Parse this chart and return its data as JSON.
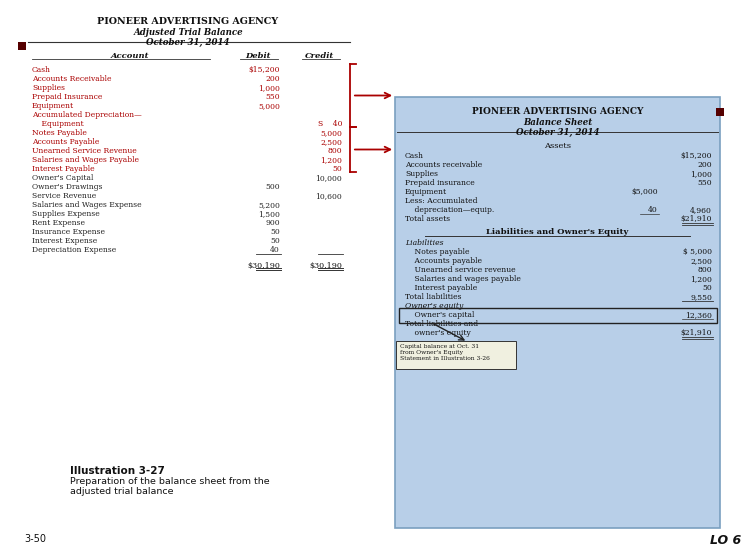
{
  "bg_color": "#ffffff",
  "left_panel": {
    "title1": "PIONEER ADVERTISING AGENCY",
    "title2": "Adjusted Trial Balance",
    "title3": "October 31, 2014",
    "col_headers": [
      "Account",
      "Debit",
      "Credit"
    ],
    "accounts": [
      {
        "name": "Cash",
        "debit": "$15,200",
        "credit": "",
        "color": "#aa0000"
      },
      {
        "name": "Accounts Receivable",
        "debit": "200",
        "credit": "",
        "color": "#aa0000"
      },
      {
        "name": "Supplies",
        "debit": "1,000",
        "credit": "",
        "color": "#aa0000"
      },
      {
        "name": "Prepaid Insurance",
        "debit": "550",
        "credit": "",
        "color": "#aa0000"
      },
      {
        "name": "Equipment",
        "debit": "5,000",
        "credit": "",
        "color": "#aa0000"
      },
      {
        "name": "Accumulated Depreciation—",
        "debit": "",
        "credit": "",
        "color": "#aa0000"
      },
      {
        "name": "    Equipment",
        "debit": "",
        "credit": "S    40",
        "color": "#aa0000"
      },
      {
        "name": "Notes Payable",
        "debit": "",
        "credit": "5,000",
        "color": "#aa0000"
      },
      {
        "name": "Accounts Payable",
        "debit": "",
        "credit": "2,500",
        "color": "#aa0000"
      },
      {
        "name": "Unearned Service Revenue",
        "debit": "",
        "credit": "800",
        "color": "#aa0000"
      },
      {
        "name": "Salaries and Wages Payable",
        "debit": "",
        "credit": "1,200",
        "color": "#aa0000"
      },
      {
        "name": "Interest Payable",
        "debit": "",
        "credit": "50",
        "color": "#aa0000"
      },
      {
        "name": "Owner's Capital",
        "debit": "",
        "credit": "10,000",
        "color": "#222222"
      },
      {
        "name": "Owner's Drawings",
        "debit": "500",
        "credit": "",
        "color": "#222222"
      },
      {
        "name": "Service Revenue",
        "debit": "",
        "credit": "10,600",
        "color": "#222222"
      },
      {
        "name": "Salaries and Wages Expense",
        "debit": "5,200",
        "credit": "",
        "color": "#222222"
      },
      {
        "name": "Supplies Expense",
        "debit": "1,500",
        "credit": "",
        "color": "#222222"
      },
      {
        "name": "Rent Expense",
        "debit": "900",
        "credit": "",
        "color": "#222222"
      },
      {
        "name": "Insurance Expense",
        "debit": "50",
        "credit": "",
        "color": "#222222"
      },
      {
        "name": "Interest Expense",
        "debit": "50",
        "credit": "",
        "color": "#222222"
      },
      {
        "name": "Depreciation Expense",
        "debit": "40",
        "credit": "",
        "color": "#222222"
      }
    ],
    "total_debit": "$30,190",
    "total_credit": "$30,190"
  },
  "right_panel": {
    "bg_color": "#b8cfe8",
    "border_color": "#7a9fc0",
    "title1": "PIONEER ADVERTISING AGENCY",
    "title2": "Balance Sheet",
    "title3": "October 31, 2014",
    "assets_header": "Assets",
    "assets": [
      {
        "name": "Cash",
        "col1": "",
        "col2": "$15,200"
      },
      {
        "name": "Accounts receivable",
        "col1": "",
        "col2": "200"
      },
      {
        "name": "Supplies",
        "col1": "",
        "col2": "1,000"
      },
      {
        "name": "Prepaid insurance",
        "col1": "",
        "col2": "550"
      },
      {
        "name": "Equipment",
        "col1": "$5,000",
        "col2": ""
      },
      {
        "name": "Less: Accumulated",
        "col1": "",
        "col2": ""
      },
      {
        "name": "    depreciation—equip.",
        "col1": "40",
        "col2": "4,960"
      },
      {
        "name": "Total assets",
        "col1": "",
        "col2": "$21,910"
      }
    ],
    "liab_header": "Liabilities and Owner's Equity",
    "liabilities_header": "Liabilities",
    "liabilities": [
      {
        "name": "    Notes payable",
        "col1": "",
        "col2": "$ 5,000"
      },
      {
        "name": "    Accounts payable",
        "col1": "",
        "col2": "2,500"
      },
      {
        "name": "    Unearned service revenue",
        "col1": "",
        "col2": "800"
      },
      {
        "name": "    Salaries and wages payable",
        "col1": "",
        "col2": "1,200"
      },
      {
        "name": "    Interest payable",
        "col1": "",
        "col2": "50"
      },
      {
        "name": "Total liabilities",
        "col1": "",
        "col2": "9,550"
      }
    ],
    "equity_header": "Owner's equity",
    "equity": [
      {
        "name": "    Owner's capital",
        "col1": "",
        "col2": "12,360"
      },
      {
        "name": "Total liabilities and",
        "col1": "",
        "col2": ""
      },
      {
        "name": "    owner's equity",
        "col1": "",
        "col2": "$21,910"
      }
    ],
    "footnote": "Capital balance at Oct. 31\nfrom Owner's Equity\nStatement in Illustration 3-26"
  },
  "illustration_bold": "Illustration 3-27",
  "illustration_text": "Preparation of the balance sheet from the\nadjusted trial balance",
  "slide_num": "3-50",
  "lo_text": "LO 6",
  "bracket_color": "#aa0000",
  "small_square_color": "#550000"
}
